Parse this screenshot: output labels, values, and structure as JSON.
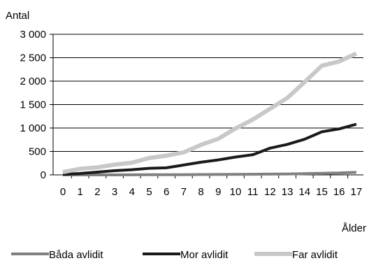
{
  "chart_data": {
    "type": "line",
    "ylabel": "Antal",
    "xlabel": "Ålder",
    "x": [
      0,
      1,
      2,
      3,
      4,
      5,
      6,
      7,
      8,
      9,
      10,
      11,
      12,
      13,
      14,
      15,
      16,
      17
    ],
    "x_tick_labels": [
      "0",
      "1",
      "2",
      "3",
      "4",
      "5",
      "6",
      "7",
      "8",
      "9",
      "10",
      "11",
      "12",
      "13",
      "14",
      "15",
      "16",
      "17"
    ],
    "ylim": [
      0,
      3000
    ],
    "y_ticks": [
      0,
      500,
      1000,
      1500,
      2000,
      2500,
      3000
    ],
    "y_tick_labels": [
      "0",
      "500",
      "1 000",
      "1 500",
      "2 000",
      "2 500",
      "3 000"
    ],
    "grid": "horizontal",
    "legend_position": "bottom",
    "series": [
      {
        "name": "Båda avlidit",
        "color": "#808080",
        "values": [
          0,
          0,
          0,
          0,
          2,
          3,
          4,
          5,
          7,
          9,
          11,
          13,
          17,
          20,
          25,
          35,
          40,
          55
        ]
      },
      {
        "name": "Mor avlidit",
        "color": "#1a1a1a",
        "values": [
          10,
          30,
          60,
          90,
          110,
          140,
          150,
          210,
          270,
          320,
          380,
          430,
          570,
          650,
          760,
          920,
          980,
          1080
        ]
      },
      {
        "name": "Far avlidit",
        "color": "#c8c8c8",
        "values": [
          60,
          130,
          160,
          220,
          260,
          360,
          410,
          480,
          640,
          770,
          990,
          1180,
          1410,
          1640,
          1980,
          2330,
          2420,
          2590
        ]
      }
    ]
  }
}
